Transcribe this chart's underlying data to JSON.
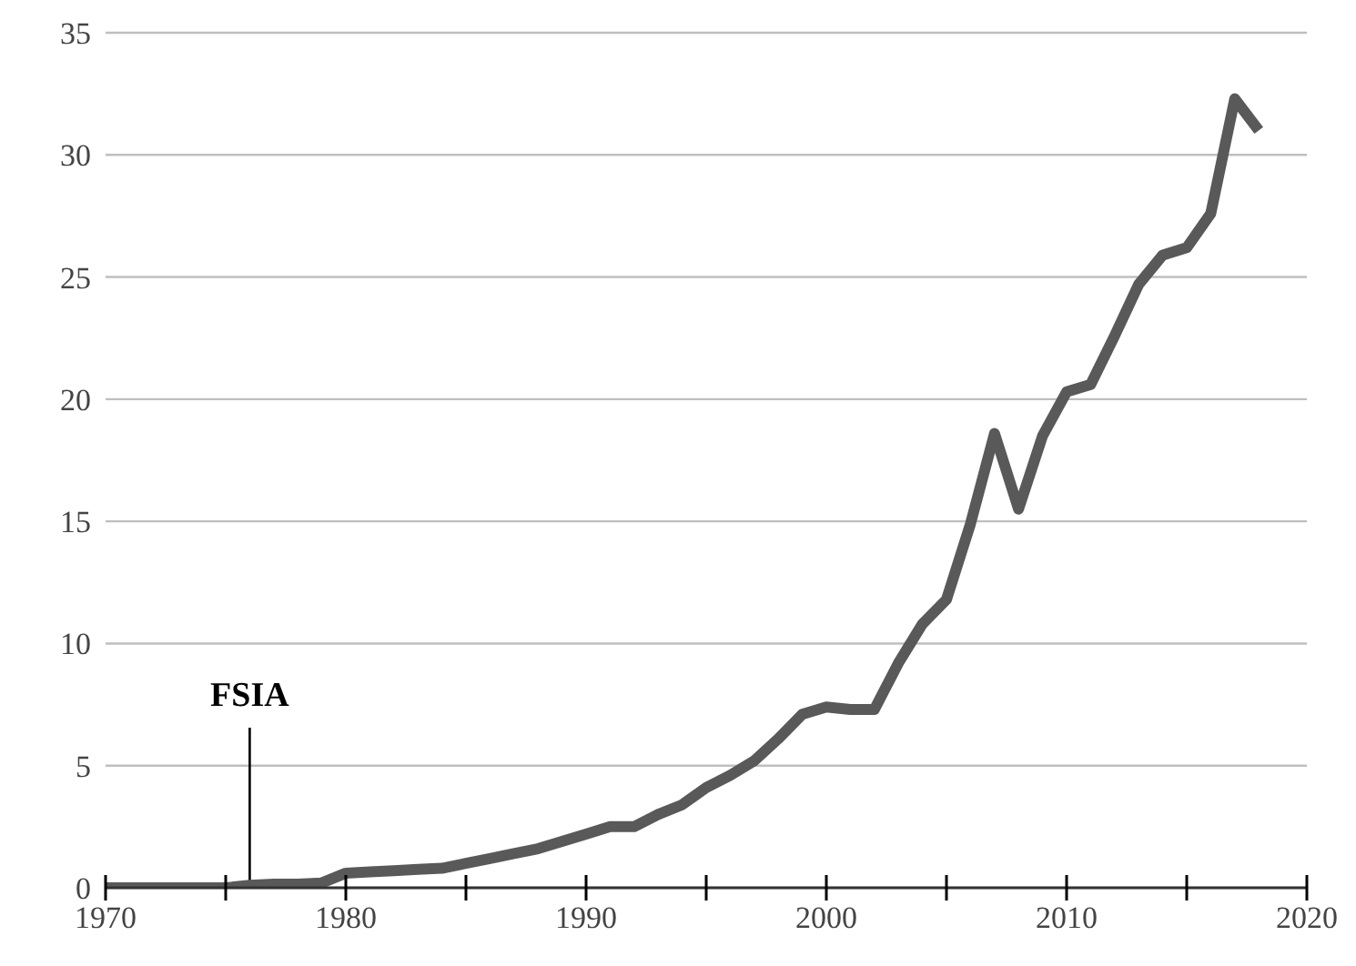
{
  "chart_data": {
    "type": "line",
    "x": [
      1970,
      1971,
      1972,
      1973,
      1974,
      1975,
      1976,
      1977,
      1978,
      1979,
      1980,
      1981,
      1982,
      1983,
      1984,
      1985,
      1986,
      1987,
      1988,
      1989,
      1990,
      1991,
      1992,
      1993,
      1994,
      1995,
      1996,
      1997,
      1998,
      1999,
      2000,
      2001,
      2002,
      2003,
      2004,
      2005,
      2006,
      2007,
      2008,
      2009,
      2010,
      2011,
      2012,
      2013,
      2014,
      2015,
      2016,
      2017,
      2018
    ],
    "series": [
      {
        "color": "#595959",
        "values": [
          0,
          0,
          0,
          0,
          0,
          0,
          0.1,
          0.15,
          0.15,
          0.2,
          0.6,
          0.65,
          0.7,
          0.75,
          0.8,
          1.0,
          1.2,
          1.4,
          1.6,
          1.9,
          2.2,
          2.5,
          2.5,
          3.0,
          3.4,
          4.1,
          4.6,
          5.2,
          6.1,
          7.1,
          7.4,
          7.3,
          7.3,
          9.2,
          10.8,
          11.8,
          14.9,
          18.6,
          15.5,
          18.5,
          20.3,
          20.6,
          22.6,
          24.7,
          25.9,
          26.2,
          27.6,
          32.3,
          31.0
        ]
      }
    ],
    "xlim": [
      1970,
      2020
    ],
    "xticks": [
      1970,
      {
        "value": 1975,
        "label": null
      },
      1980,
      {
        "value": 1985,
        "label": null
      },
      1990,
      {
        "value": 1995,
        "label": null
      },
      2000,
      {
        "value": 2005,
        "label": null
      },
      2010,
      {
        "value": 2015,
        "label": null
      },
      2020
    ],
    "ylim": [
      0,
      35
    ],
    "yticks": [
      0,
      5,
      10,
      15,
      20,
      25,
      30,
      35
    ],
    "grid": "y",
    "marker": "none",
    "line_style": "solid",
    "ref_lines": [
      {
        "axis": "x",
        "value": 1976,
        "label": "FSIA",
        "color": "#000000"
      }
    ]
  }
}
